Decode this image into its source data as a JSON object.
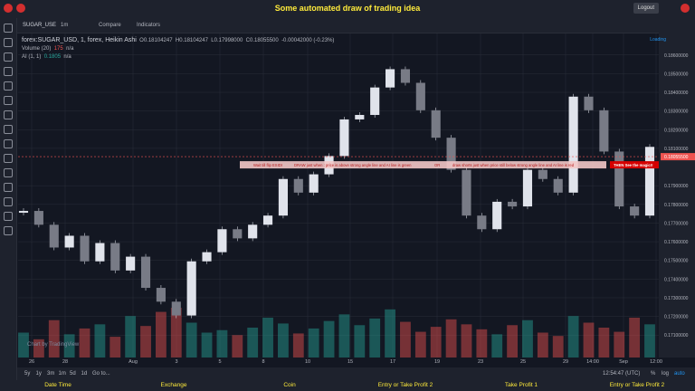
{
  "header": {
    "title": "Some automated draw of trading idea",
    "logout": "Logout"
  },
  "toolbar": {
    "symbol": "SUGAR_USE",
    "interval": "1m",
    "compare": "Compare",
    "indicators": "Indicators"
  },
  "legend": {
    "main": "forex:SUGAR_USD, 1, forex, Heikin Ashi",
    "open": "O0.18104247",
    "high": "H0.18104247",
    "low": "L0.17998000",
    "close": "C0.18055500",
    "change": "-0.00042000 (-0.23%)",
    "volume": "Volume (20)",
    "volume_value": "175",
    "volume_na": "n/a",
    "ai": "AI (1, 1)",
    "ai_value": "0.1805",
    "ai_na": "n/a"
  },
  "loading": "Loading",
  "chart": {
    "ylim": [
      0.1698,
      0.1872
    ],
    "yticks": [
      {
        "value": 0.186,
        "label": "0.18600000"
      },
      {
        "value": 0.185,
        "label": "0.18500000"
      },
      {
        "value": 0.184,
        "label": "0.18400000"
      },
      {
        "value": 0.183,
        "label": "0.18300000"
      },
      {
        "value": 0.182,
        "label": "0.18200000"
      },
      {
        "value": 0.181,
        "label": "0.18100000"
      },
      {
        "value": 0.179,
        "label": "0.17900000"
      },
      {
        "value": 0.178,
        "label": "0.17800000"
      },
      {
        "value": 0.177,
        "label": "0.17700000"
      },
      {
        "value": 0.176,
        "label": "0.17600000"
      },
      {
        "value": 0.175,
        "label": "0.17500000"
      },
      {
        "value": 0.174,
        "label": "0.17400000"
      },
      {
        "value": 0.173,
        "label": "0.17300000"
      },
      {
        "value": 0.172,
        "label": "0.17200000"
      },
      {
        "value": 0.171,
        "label": "0.17100000"
      }
    ],
    "last_price": {
      "value": 0.180555,
      "label": "0.18055500"
    },
    "xticks": [
      "26",
      "28",
      "Aug",
      "3",
      "5",
      "8",
      "10",
      "15",
      "17",
      "19",
      "23",
      "25",
      "29",
      "14:00",
      "Sep",
      "12:00"
    ],
    "prices": [
      0.17765,
      0.17691,
      0.17569,
      0.17632,
      0.17495,
      0.17593,
      0.17446,
      0.1752,
      0.17353,
      0.17279,
      0.17205,
      0.17495,
      0.17544,
      0.17667,
      0.17618,
      0.17691,
      0.1774,
      0.17936,
      0.17863,
      0.17961,
      0.18059,
      0.18255,
      0.18279,
      0.18426,
      0.18524,
      0.18451,
      0.18304,
      0.18157,
      0.17985,
      0.1774,
      0.17667,
      0.17814,
      0.17789,
      0.17985,
      0.17936,
      0.17863,
      0.18377,
      0.18304,
      0.18083,
      0.17789,
      0.1774,
      0.18108
    ],
    "volumes": [
      30,
      22,
      45,
      28,
      35,
      40,
      25,
      50,
      38,
      55,
      60,
      42,
      30,
      33,
      27,
      36,
      48,
      41,
      29,
      35,
      44,
      52,
      39,
      47,
      58,
      43,
      31,
      37,
      46,
      40,
      34,
      28,
      39,
      45,
      30,
      26,
      50,
      42,
      36,
      31,
      48,
      40
    ],
    "annotations": [
      "Wait till flip ESIDI",
      "DRAW just when : price is above strong angle line and AI line is green",
      "OR",
      "draw shorts just when price still below strong angle line and AI line is red"
    ],
    "callout": "THEN See the magic!!"
  },
  "watermark": "Chart by TradingView",
  "footer": {
    "ranges": [
      "5y",
      "1y",
      "3m",
      "1m",
      "5d",
      "1d",
      "Go to..."
    ],
    "time": "12:54:47 (UTC)",
    "percent": "%",
    "log": "log",
    "auto": "auto"
  },
  "columns": [
    "Date Time",
    "Exchange",
    "Coin",
    "Entry or Take Profit 2",
    "Take Profit 1",
    "Entry or Take Profit 2"
  ]
}
